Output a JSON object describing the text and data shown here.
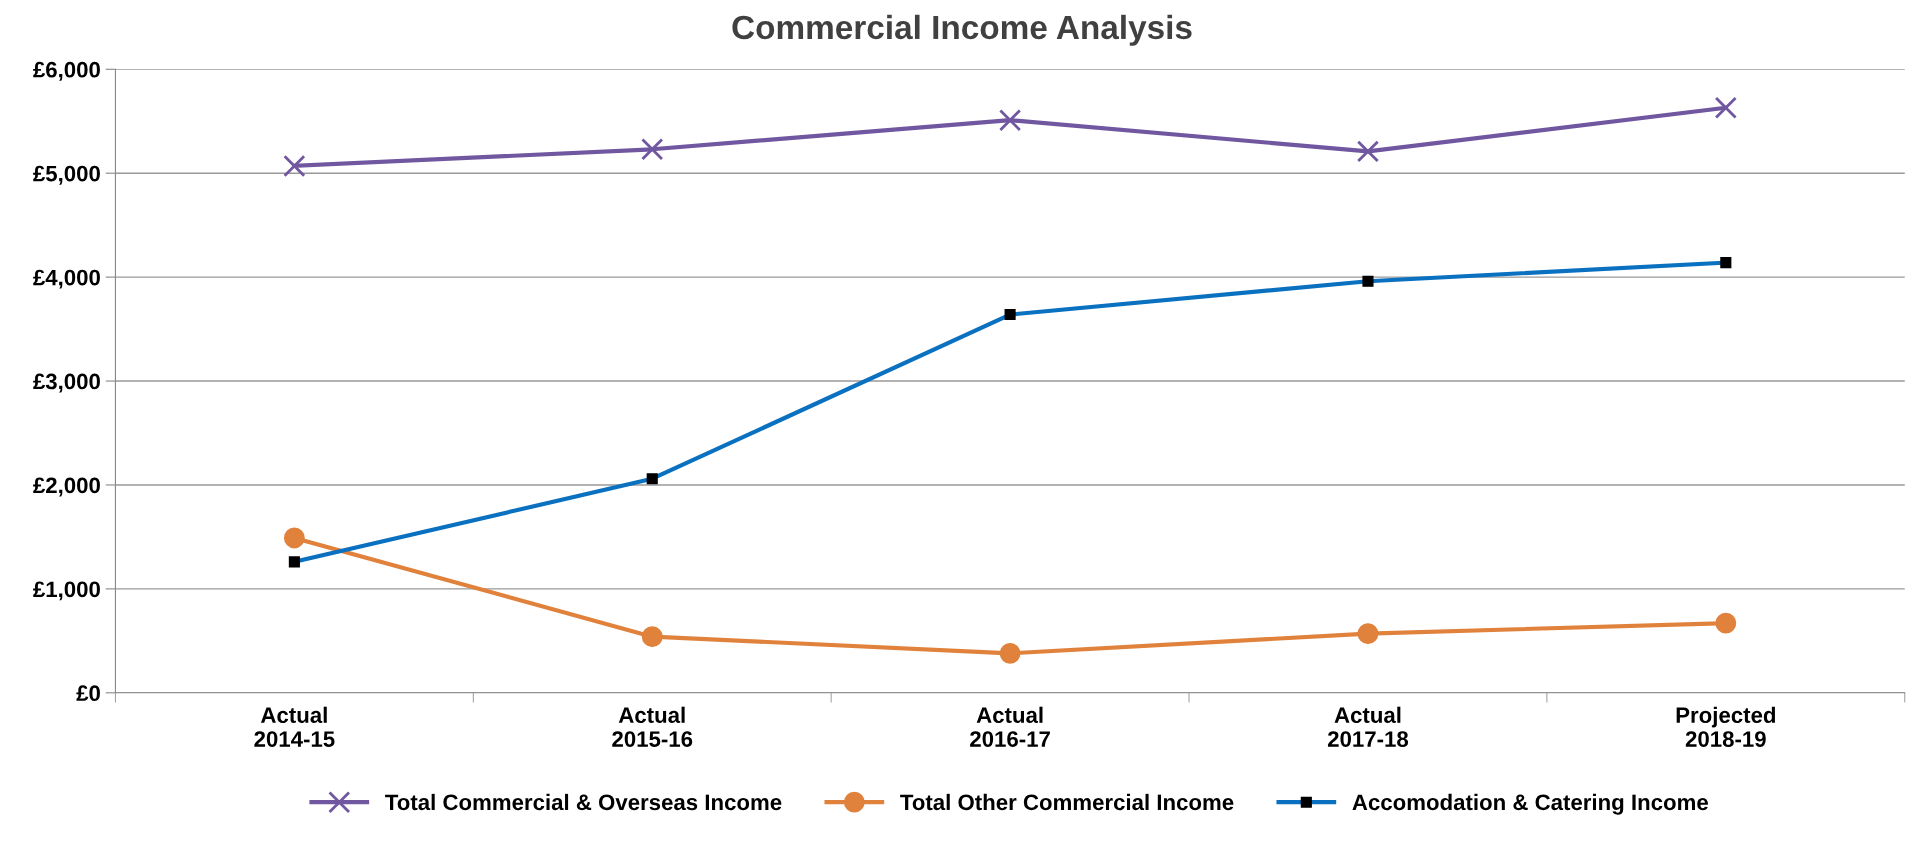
{
  "chart_data": {
    "type": "line",
    "title": "Commercial Income Analysis",
    "categories": [
      "Actual\n2014-15",
      "Actual\n2015-16",
      "Actual\n2016-17",
      "Actual\n2017-18",
      "Projected\n2018-19"
    ],
    "series": [
      {
        "name": "Total Commercial & Overseas Income",
        "color": "#7057a0",
        "marker": "cross",
        "values": [
          5070,
          5230,
          5510,
          5210,
          5630
        ]
      },
      {
        "name": "Total Other Commercial Income",
        "color": "#e0823c",
        "marker": "circle",
        "values": [
          1490,
          540,
          380,
          570,
          670
        ]
      },
      {
        "name": "Accomodation & Catering Income",
        "color": "#0a70c0",
        "marker": "square",
        "values": [
          1260,
          2060,
          3640,
          3960,
          4140
        ]
      }
    ],
    "ylim": [
      0,
      6000
    ],
    "yticks": [
      {
        "value": 0,
        "label": "£0"
      },
      {
        "value": 1000,
        "label": "£1,000"
      },
      {
        "value": 2000,
        "label": "£2,000"
      },
      {
        "value": 3000,
        "label": "£3,000"
      },
      {
        "value": 4000,
        "label": "£4,000"
      },
      {
        "value": 5000,
        "label": "£5,000"
      },
      {
        "value": 6000,
        "label": "£6,000"
      }
    ],
    "grid": "y",
    "legend": "bottom",
    "line_style": "solid"
  }
}
